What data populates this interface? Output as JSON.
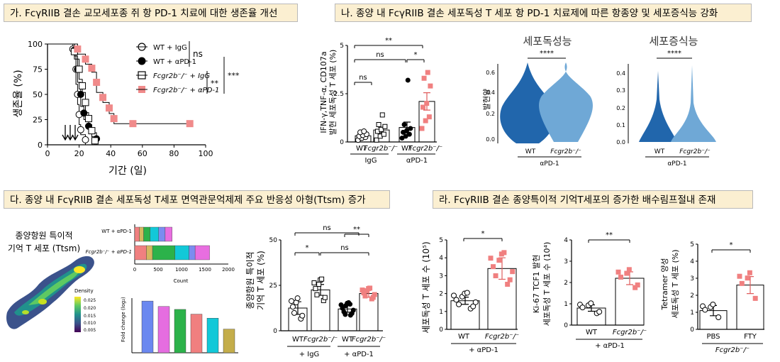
{
  "headers": {
    "a": "가. FcγRIIB 결손 교모세포종 쥐 항 PD-1 치료에 대한  생존율 개선",
    "b": "나. 종양 내 FcγRIIB 결손 세포독성 T 세포 항 PD-1 치료제에 따른 항종양 및 세포증식능 강화",
    "c": "다. 종양 내 FcγRIIB 결손 세포독성  T세포 면역관문억제제 주요 반응성 아형(Ttsm) 증가",
    "d": "라. FcγRIIB 결손 종양특이적 기억T세포의 증가한 배수림프절내  존재"
  },
  "panelA": {
    "ylabel": "생존율 (%)",
    "xlabel": "기간 (일)",
    "ns": "ns",
    "sig_2": "**",
    "sig_3": "***",
    "legend": [
      "WT + IgG",
      "WT + αPD-1",
      "Fcgr2b⁻/⁻ + IgG",
      "Fcgr2b⁻/⁻ + αPD-1"
    ]
  },
  "panelB": {
    "ylabel1": "IFN-γ,TNF-α, CD107a",
    "ylabel2": "발현 세포독성 T 세포 (%)",
    "sig_top": "**",
    "sig_ns1": "ns",
    "sig_star": "*",
    "sig_ns2": "ns",
    "x_wt1": "WT",
    "x_ko1": "Fcgr2b⁻/⁻",
    "x_wt2": "WT",
    "x_ko2": "Fcgr2b⁻/⁻",
    "grp1": "IgG",
    "grp2": "αPD-1",
    "violin1_title": "세포독성능",
    "violin2_title": "세포증식능",
    "violin_sig1": "****",
    "violin_sig2": "****",
    "violin_ylabel": "발현양",
    "violin_x_wt1": "WT",
    "violin_x_ko1": "Fcgr2b⁻/⁻",
    "violin_x_wt2": "WT",
    "violin_x_ko2": "Fcgr2b⁻/⁻",
    "violin_grp1": "αPD-1",
    "violin_grp2": "αPD-1"
  },
  "panelC": {
    "umap_title1": "종양항원 특이적",
    "umap_title2": "기억 T 세포 (Ttsm)",
    "density_label": "Density",
    "density_ticks": [
      "0.025",
      "0.020",
      "0.015",
      "0.010",
      "0.005"
    ],
    "bar_row1": "WT + αPD-1",
    "bar_row2": "Fcgr2b⁻/⁻ + αPD-1",
    "count_label": "Count",
    "fc_ylabel": "Fold change (log₂)",
    "dot_ylabel1": "종양항원 특이적",
    "dot_ylabel2": "기억 T 세포 (%)",
    "sig_ns_top": "ns",
    "sig_2": "**",
    "sig_star": "*",
    "sig_ns_mid": "ns",
    "x_wt1": "WT",
    "x_ko1": "Fcgr2b⁻/⁻",
    "x_wt2": "WT",
    "x_ko2": "Fcgr2b⁻/⁻",
    "grp1": "+ IgG",
    "grp2": "+ αPD-1"
  },
  "panelD": {
    "p1_ylabel": "세포독성 T 세포 수 (10⁵)",
    "p1_sig": "*",
    "p1_x1": "WT",
    "p1_x2": "Fcgr2b⁻/⁻",
    "p1_grp": "+ αPD-1",
    "p2_ylabel1": "Ki-67 TCF1 발현",
    "p2_ylabel2": "세포독성 T 세포 수 (10⁴)",
    "p2_sig": "**",
    "p2_x1": "WT",
    "p2_x2": "Fcgr2b⁻/⁻",
    "p2_grp": "+ αPD-1",
    "p3_ylabel1": "Tetramer 양성",
    "p3_ylabel2": "세포독성 T 세포 (%)",
    "p3_sig": "*",
    "p3_x1": "PBS",
    "p3_x2": "FTY",
    "p3_grp": "Fcgr2b⁻/⁻"
  },
  "chart_data": [
    {
      "type": "line",
      "title": "가. FcγRIIB 결손 교모세포종 쥐 항 PD-1 치료에 대한  생존율 개선",
      "xlabel": "기간 (일)",
      "ylabel": "생존율 (%)",
      "xlim": [
        0,
        100
      ],
      "ylim": [
        0,
        100
      ],
      "xticks": [
        0,
        20,
        40,
        60,
        80,
        100
      ],
      "yticks": [
        0,
        25,
        50,
        75,
        100
      ],
      "series": [
        {
          "name": "WT + IgG",
          "steps": [
            [
              0,
              100
            ],
            [
              16,
              100
            ],
            [
              16,
              90
            ],
            [
              18,
              90
            ],
            [
              18,
              60
            ],
            [
              19,
              60
            ],
            [
              19,
              40
            ],
            [
              20,
              40
            ],
            [
              20,
              20
            ],
            [
              21,
              20
            ],
            [
              21,
              10
            ],
            [
              24,
              10
            ],
            [
              24,
              0
            ]
          ]
        },
        {
          "name": "WT + αPD-1",
          "steps": [
            [
              0,
              100
            ],
            [
              17,
              100
            ],
            [
              17,
              88
            ],
            [
              19,
              88
            ],
            [
              19,
              62
            ],
            [
              21,
              62
            ],
            [
              21,
              38
            ],
            [
              23,
              38
            ],
            [
              23,
              25
            ],
            [
              26,
              25
            ],
            [
              26,
              12
            ],
            [
              31,
              12
            ],
            [
              31,
              0
            ]
          ]
        },
        {
          "name": "Fcgr2b⁻/⁻ + IgG",
          "steps": [
            [
              0,
              100
            ],
            [
              17,
              100
            ],
            [
              17,
              85
            ],
            [
              20,
              85
            ],
            [
              20,
              65
            ],
            [
              22,
              65
            ],
            [
              22,
              52
            ],
            [
              24,
              52
            ],
            [
              24,
              32
            ],
            [
              26,
              32
            ],
            [
              26,
              20
            ],
            [
              28,
              20
            ],
            [
              28,
              8
            ],
            [
              30,
              8
            ],
            [
              30,
              0
            ]
          ]
        },
        {
          "name": "Fcgr2b⁻/⁻ + αPD-1",
          "steps": [
            [
              0,
              100
            ],
            [
              19,
              100
            ],
            [
              19,
              90
            ],
            [
              24,
              90
            ],
            [
              24,
              80
            ],
            [
              28,
              80
            ],
            [
              28,
              72
            ],
            [
              31,
              72
            ],
            [
              31,
              52
            ],
            [
              35,
              52
            ],
            [
              35,
              42
            ],
            [
              39,
              42
            ],
            [
              39,
              31
            ],
            [
              42,
              31
            ],
            [
              42,
              21
            ],
            [
              90,
              21
            ]
          ]
        }
      ],
      "annotations": [
        "ns",
        "**",
        "***"
      ]
    },
    {
      "type": "bar",
      "ylabel": "IFN-γ,TNF-α, CD107a 발현 세포독성 T 세포 (%)",
      "ylim": [
        0,
        5
      ],
      "yticks": [
        0,
        2.5,
        5
      ],
      "categories": [
        "WT",
        "Fcgr2b⁻/⁻",
        "WT",
        "Fcgr2b⁻/⁻"
      ],
      "groups": [
        "IgG",
        "IgG",
        "αPD-1",
        "αPD-1"
      ],
      "values": [
        0.32,
        0.62,
        0.75,
        2.1
      ],
      "errors": [
        0.1,
        0.15,
        0.28,
        0.45
      ],
      "points": [
        [
          0.1,
          0.2,
          0.25,
          0.3,
          0.35,
          0.4,
          0.5,
          0.55
        ],
        [
          0.1,
          0.3,
          0.4,
          0.55,
          0.65,
          0.8,
          0.9,
          1.4
        ],
        [
          0.2,
          0.3,
          0.4,
          0.5,
          0.6,
          0.7,
          0.9,
          3.2
        ],
        [
          0.7,
          1.1,
          1.3,
          1.8,
          2.0,
          2.9,
          3.3,
          3.6
        ]
      ],
      "annotations": [
        "**",
        "ns",
        "*",
        "ns"
      ]
    },
    {
      "type": "bar",
      "categories": [
        "WT + αPD-1",
        "Fcgr2b⁻/⁻ + αPD-1"
      ],
      "xlabel": "Count",
      "xlim": [
        0,
        2000
      ],
      "xticks": [
        0,
        500,
        1000,
        1500,
        2000
      ],
      "stacked_segments": [
        [
          100,
          90,
          140,
          180,
          140,
          150
        ],
        [
          250,
          130,
          480,
          300,
          130,
          310
        ]
      ],
      "colors": [
        "#f08080",
        "#d4b860",
        "#2cb24a",
        "#12c8d8",
        "#7b8cf0",
        "#e86ee0"
      ]
    },
    {
      "type": "bar",
      "ylabel": "Fold change (log₂)",
      "values": [
        1.42,
        1.27,
        1.19,
        1.06,
        0.95,
        0.65
      ],
      "colors": [
        "#6b88f0",
        "#e56de0",
        "#2cb24a",
        "#f07f7f",
        "#12c8d8",
        "#c4ad4a"
      ]
    },
    {
      "type": "bar",
      "ylabel": "종양항원 특이적 기억 T 세포 (%)",
      "ylim": [
        0,
        50
      ],
      "yticks": [
        0,
        25,
        50
      ],
      "categories": [
        "WT",
        "Fcgr2b⁻/⁻",
        "WT",
        "Fcgr2b⁻/⁻"
      ],
      "groups": [
        "+ IgG",
        "+ IgG",
        "+ αPD-1",
        "+ αPD-1"
      ],
      "values": [
        12.5,
        22.5,
        12.0,
        20.5
      ],
      "errors": [
        3.5,
        3.0,
        1.8,
        2.0
      ],
      "annotations": [
        "ns",
        "**",
        "*",
        "ns"
      ]
    },
    {
      "type": "bar",
      "ylabel": "세포독성 T 세포 수 (10⁵)",
      "ylim": [
        0,
        5
      ],
      "yticks": [
        0,
        1,
        2,
        3,
        4,
        5
      ],
      "categories": [
        "WT",
        "Fcgr2b⁻/⁻"
      ],
      "groups": [
        "+ αPD-1",
        "+ αPD-1"
      ],
      "values": [
        1.6,
        3.4
      ],
      "errors": [
        0.2,
        0.6
      ],
      "annotations": [
        "*"
      ]
    },
    {
      "type": "bar",
      "ylabel": "Ki-67 TCF1 발현 세포독성 T 세포 수 (10⁴)",
      "ylim": [
        0,
        4
      ],
      "yticks": [
        0,
        1,
        2,
        3,
        4
      ],
      "categories": [
        "WT",
        "Fcgr2b⁻/⁻"
      ],
      "groups": [
        "+ αPD-1",
        "+ αPD-1"
      ],
      "values": [
        0.8,
        2.2
      ],
      "errors": [
        0.15,
        0.3
      ],
      "annotations": [
        "**"
      ]
    },
    {
      "type": "bar",
      "ylabel": "Tetramer 양성 세포독성 T 세포 (%)",
      "ylim": [
        0,
        5
      ],
      "yticks": [
        0,
        1,
        2,
        3,
        4,
        5
      ],
      "categories": [
        "PBS",
        "FTY"
      ],
      "groups": [
        "Fcgr2b⁻/⁻",
        "Fcgr2b⁻/⁻"
      ],
      "values": [
        1.1,
        2.6
      ],
      "errors": [
        0.3,
        0.5
      ],
      "annotations": [
        "*"
      ]
    }
  ]
}
